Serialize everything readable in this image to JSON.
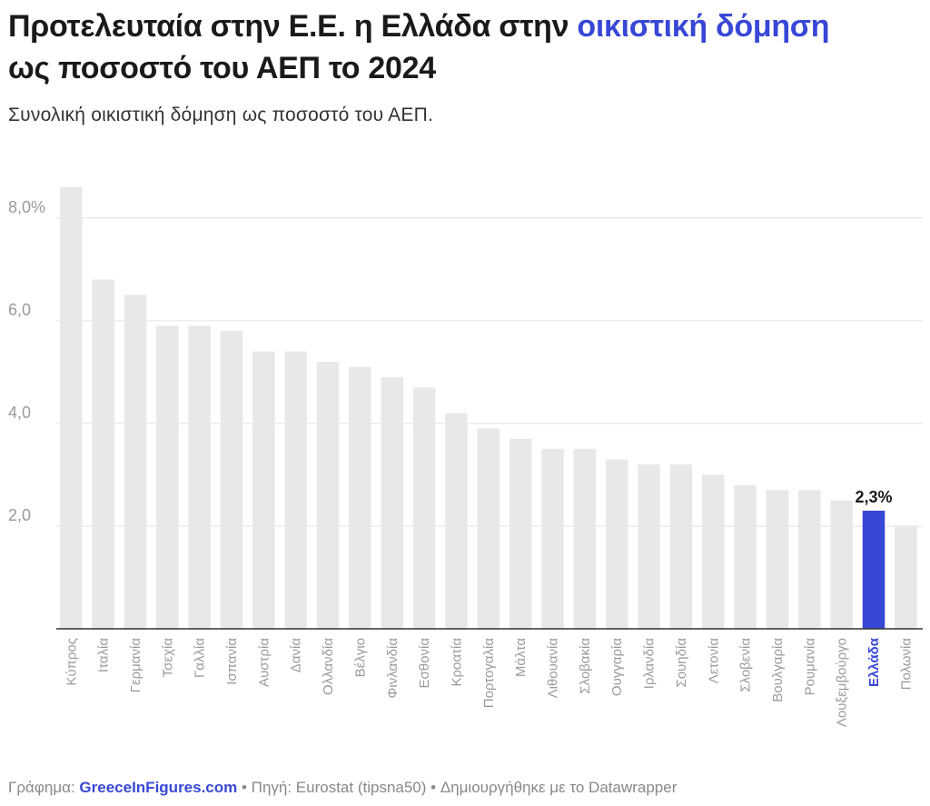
{
  "header": {
    "title_part1": "Προτελευταία στην Ε.Ε. η Ελλάδα στην ",
    "title_highlight": "οικιστική δόμηση",
    "title_part2": "ως ποσοστό του ΑΕΠ το 2024",
    "subtitle": "Συνολική οικιστική δόμηση ως ποσοστό του ΑΕΠ."
  },
  "footer": {
    "prefix": "Γράφημα: ",
    "brand": "GreeceInFigures.com",
    "rest": " • Πηγή: Eurostat (tipsna50) • Δημιουργήθηκε με το Datawrapper"
  },
  "colors": {
    "bar": "#e8e8e8",
    "highlight": "#3847d6",
    "grid": "#e2e2e2",
    "axis": "#333333",
    "tick_label": "#9a9a9a"
  },
  "chart_data": {
    "type": "bar",
    "categories": [
      "Κύπρος",
      "Ιταλία",
      "Γερμανία",
      "Τσεχία",
      "Γαλλία",
      "Ισπανία",
      "Αυστρία",
      "Δανία",
      "Ολλανδία",
      "Βέλγιο",
      "Φινλανδία",
      "Εσθονία",
      "Κροατία",
      "Πορτογαλία",
      "Μάλτα",
      "Λιθουανία",
      "Σλοβακία",
      "Ουγγαρία",
      "Ιρλανδία",
      "Σουηδία",
      "Λετονία",
      "Σλοβενία",
      "Βουλγαρία",
      "Ρουμανία",
      "Λουξεμβούργο",
      "Ελλάδα",
      "Πολωνία"
    ],
    "values": [
      8.6,
      6.8,
      6.5,
      5.9,
      5.9,
      5.8,
      5.4,
      5.4,
      5.2,
      5.1,
      4.9,
      4.7,
      4.2,
      3.9,
      3.7,
      3.5,
      3.5,
      3.3,
      3.2,
      3.2,
      3.0,
      2.8,
      2.7,
      2.7,
      2.5,
      2.3,
      2.0
    ],
    "highlight_category": "Ελλάδα",
    "highlight_label": "2,3%",
    "y_ticks": [
      {
        "value": 2,
        "label": "2,0"
      },
      {
        "value": 4,
        "label": "4,0"
      },
      {
        "value": 6,
        "label": "6,0"
      },
      {
        "value": 8,
        "label": "8,0%"
      }
    ],
    "ylim": [
      0,
      8.9
    ],
    "grid": true
  }
}
